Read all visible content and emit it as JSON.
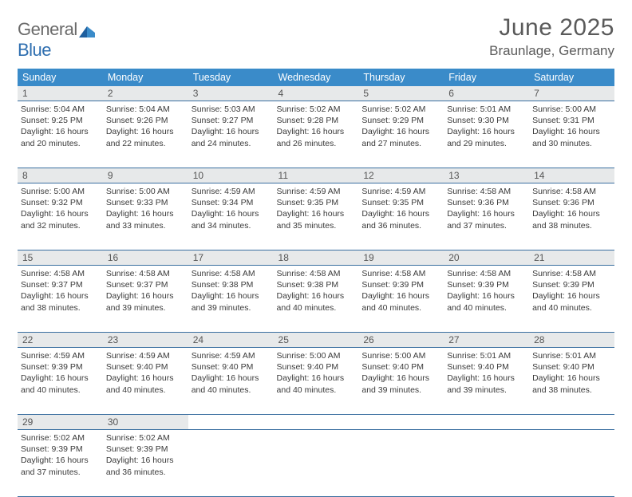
{
  "brand": {
    "word1": "General",
    "word2": "Blue"
  },
  "title": "June 2025",
  "location": "Braunlage, Germany",
  "colors": {
    "header_bg": "#3a8bc9",
    "header_text": "#ffffff",
    "daynum_bg": "#e7e9ea",
    "rule": "#2f6fb0",
    "brand_blue": "#2f6fb0",
    "text": "#3a3a3a"
  },
  "weekdays": [
    "Sunday",
    "Monday",
    "Tuesday",
    "Wednesday",
    "Thursday",
    "Friday",
    "Saturday"
  ],
  "weeks": [
    [
      {
        "n": "1",
        "sr": "Sunrise: 5:04 AM",
        "ss": "Sunset: 9:25 PM",
        "d1": "Daylight: 16 hours",
        "d2": "and 20 minutes."
      },
      {
        "n": "2",
        "sr": "Sunrise: 5:04 AM",
        "ss": "Sunset: 9:26 PM",
        "d1": "Daylight: 16 hours",
        "d2": "and 22 minutes."
      },
      {
        "n": "3",
        "sr": "Sunrise: 5:03 AM",
        "ss": "Sunset: 9:27 PM",
        "d1": "Daylight: 16 hours",
        "d2": "and 24 minutes."
      },
      {
        "n": "4",
        "sr": "Sunrise: 5:02 AM",
        "ss": "Sunset: 9:28 PM",
        "d1": "Daylight: 16 hours",
        "d2": "and 26 minutes."
      },
      {
        "n": "5",
        "sr": "Sunrise: 5:02 AM",
        "ss": "Sunset: 9:29 PM",
        "d1": "Daylight: 16 hours",
        "d2": "and 27 minutes."
      },
      {
        "n": "6",
        "sr": "Sunrise: 5:01 AM",
        "ss": "Sunset: 9:30 PM",
        "d1": "Daylight: 16 hours",
        "d2": "and 29 minutes."
      },
      {
        "n": "7",
        "sr": "Sunrise: 5:00 AM",
        "ss": "Sunset: 9:31 PM",
        "d1": "Daylight: 16 hours",
        "d2": "and 30 minutes."
      }
    ],
    [
      {
        "n": "8",
        "sr": "Sunrise: 5:00 AM",
        "ss": "Sunset: 9:32 PM",
        "d1": "Daylight: 16 hours",
        "d2": "and 32 minutes."
      },
      {
        "n": "9",
        "sr": "Sunrise: 5:00 AM",
        "ss": "Sunset: 9:33 PM",
        "d1": "Daylight: 16 hours",
        "d2": "and 33 minutes."
      },
      {
        "n": "10",
        "sr": "Sunrise: 4:59 AM",
        "ss": "Sunset: 9:34 PM",
        "d1": "Daylight: 16 hours",
        "d2": "and 34 minutes."
      },
      {
        "n": "11",
        "sr": "Sunrise: 4:59 AM",
        "ss": "Sunset: 9:35 PM",
        "d1": "Daylight: 16 hours",
        "d2": "and 35 minutes."
      },
      {
        "n": "12",
        "sr": "Sunrise: 4:59 AM",
        "ss": "Sunset: 9:35 PM",
        "d1": "Daylight: 16 hours",
        "d2": "and 36 minutes."
      },
      {
        "n": "13",
        "sr": "Sunrise: 4:58 AM",
        "ss": "Sunset: 9:36 PM",
        "d1": "Daylight: 16 hours",
        "d2": "and 37 minutes."
      },
      {
        "n": "14",
        "sr": "Sunrise: 4:58 AM",
        "ss": "Sunset: 9:36 PM",
        "d1": "Daylight: 16 hours",
        "d2": "and 38 minutes."
      }
    ],
    [
      {
        "n": "15",
        "sr": "Sunrise: 4:58 AM",
        "ss": "Sunset: 9:37 PM",
        "d1": "Daylight: 16 hours",
        "d2": "and 38 minutes."
      },
      {
        "n": "16",
        "sr": "Sunrise: 4:58 AM",
        "ss": "Sunset: 9:37 PM",
        "d1": "Daylight: 16 hours",
        "d2": "and 39 minutes."
      },
      {
        "n": "17",
        "sr": "Sunrise: 4:58 AM",
        "ss": "Sunset: 9:38 PM",
        "d1": "Daylight: 16 hours",
        "d2": "and 39 minutes."
      },
      {
        "n": "18",
        "sr": "Sunrise: 4:58 AM",
        "ss": "Sunset: 9:38 PM",
        "d1": "Daylight: 16 hours",
        "d2": "and 40 minutes."
      },
      {
        "n": "19",
        "sr": "Sunrise: 4:58 AM",
        "ss": "Sunset: 9:39 PM",
        "d1": "Daylight: 16 hours",
        "d2": "and 40 minutes."
      },
      {
        "n": "20",
        "sr": "Sunrise: 4:58 AM",
        "ss": "Sunset: 9:39 PM",
        "d1": "Daylight: 16 hours",
        "d2": "and 40 minutes."
      },
      {
        "n": "21",
        "sr": "Sunrise: 4:58 AM",
        "ss": "Sunset: 9:39 PM",
        "d1": "Daylight: 16 hours",
        "d2": "and 40 minutes."
      }
    ],
    [
      {
        "n": "22",
        "sr": "Sunrise: 4:59 AM",
        "ss": "Sunset: 9:39 PM",
        "d1": "Daylight: 16 hours",
        "d2": "and 40 minutes."
      },
      {
        "n": "23",
        "sr": "Sunrise: 4:59 AM",
        "ss": "Sunset: 9:40 PM",
        "d1": "Daylight: 16 hours",
        "d2": "and 40 minutes."
      },
      {
        "n": "24",
        "sr": "Sunrise: 4:59 AM",
        "ss": "Sunset: 9:40 PM",
        "d1": "Daylight: 16 hours",
        "d2": "and 40 minutes."
      },
      {
        "n": "25",
        "sr": "Sunrise: 5:00 AM",
        "ss": "Sunset: 9:40 PM",
        "d1": "Daylight: 16 hours",
        "d2": "and 40 minutes."
      },
      {
        "n": "26",
        "sr": "Sunrise: 5:00 AM",
        "ss": "Sunset: 9:40 PM",
        "d1": "Daylight: 16 hours",
        "d2": "and 39 minutes."
      },
      {
        "n": "27",
        "sr": "Sunrise: 5:01 AM",
        "ss": "Sunset: 9:40 PM",
        "d1": "Daylight: 16 hours",
        "d2": "and 39 minutes."
      },
      {
        "n": "28",
        "sr": "Sunrise: 5:01 AM",
        "ss": "Sunset: 9:40 PM",
        "d1": "Daylight: 16 hours",
        "d2": "and 38 minutes."
      }
    ],
    [
      {
        "n": "29",
        "sr": "Sunrise: 5:02 AM",
        "ss": "Sunset: 9:39 PM",
        "d1": "Daylight: 16 hours",
        "d2": "and 37 minutes."
      },
      {
        "n": "30",
        "sr": "Sunrise: 5:02 AM",
        "ss": "Sunset: 9:39 PM",
        "d1": "Daylight: 16 hours",
        "d2": "and 36 minutes."
      },
      null,
      null,
      null,
      null,
      null
    ]
  ]
}
